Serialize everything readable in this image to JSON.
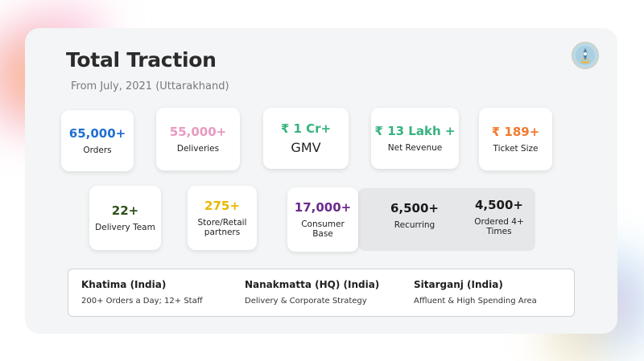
{
  "colors": {
    "blue": "#1f6fd1",
    "pink": "#e89ac2",
    "green": "#36b37e",
    "orange": "#f07a2e",
    "dark_green": "#2f4f1a",
    "gold": "#e6b800",
    "purple": "#6a2a8c",
    "black": "#1a1a1a"
  },
  "header": {
    "title": "Total Traction",
    "subtitle": "From July, 2021 (Uttarakhand)",
    "logo_icon": "brand-logo-icon"
  },
  "stats_row1": [
    {
      "value": "65,000+",
      "label": "Orders"
    },
    {
      "value": "55,000+",
      "label": "Deliveries"
    },
    {
      "value": "₹ 1 Cr+",
      "label": "GMV"
    },
    {
      "value": "₹ 13 Lakh +",
      "label": "Net Revenue"
    },
    {
      "value": "₹ 189+",
      "label": "Ticket Size"
    }
  ],
  "stats_row2": [
    {
      "value": "22+",
      "label": "Delivery Team"
    },
    {
      "value": "275+",
      "label": "Store/Retail partners"
    },
    {
      "value": "17,000+",
      "label": "Consumer Base"
    },
    {
      "value": "6,500+",
      "label": "Recurring"
    },
    {
      "value": "4,500+",
      "label": "Ordered 4+ Times"
    }
  ],
  "locations": [
    {
      "name": "Khatima (India)",
      "desc": "200+ Orders a Day; 12+ Staff"
    },
    {
      "name": "Nanakmatta (HQ) (India)",
      "desc": "Delivery & Corporate Strategy"
    },
    {
      "name": "Sitarganj (India)",
      "desc": "Affluent & High Spending Area"
    }
  ]
}
